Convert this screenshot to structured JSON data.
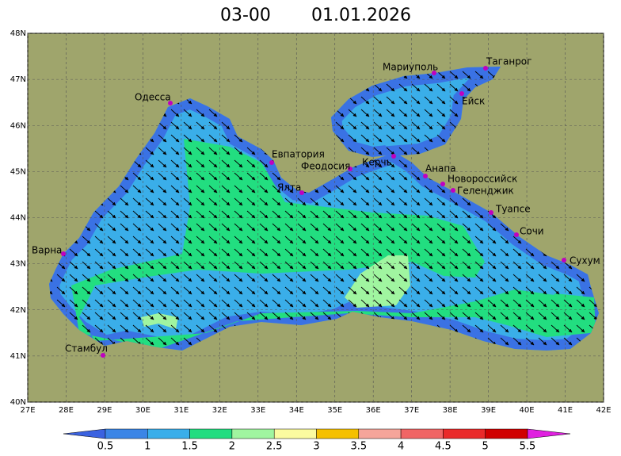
{
  "header": {
    "time": "03-00",
    "date": "01.01.2026"
  },
  "axes": {
    "lat_labels": [
      "48N",
      "47N",
      "46N",
      "45N",
      "44N",
      "43N",
      "42N",
      "41N",
      "40N"
    ],
    "lon_labels": [
      "27E",
      "28E",
      "29E",
      "30E",
      "31E",
      "32E",
      "33E",
      "34E",
      "35E",
      "36E",
      "37E",
      "38E",
      "39E",
      "40E",
      "41E",
      "42E"
    ]
  },
  "cities": [
    "Одесса",
    "Мариуполь",
    "Таганрог",
    "Ейск",
    "Евпатория",
    "Феодосия",
    "Керчь",
    "Ялта",
    "Анапа",
    "Новороссийск",
    "Геленджик",
    "Туапсе",
    "Сочи",
    "Сухум",
    "Варна",
    "Стамбул"
  ],
  "colorbar": {
    "labels": [
      "0.5",
      "1",
      "1.5",
      "2",
      "2.5",
      "3",
      "3.5",
      "4",
      "4.5",
      "5",
      "5.5"
    ]
  }
}
